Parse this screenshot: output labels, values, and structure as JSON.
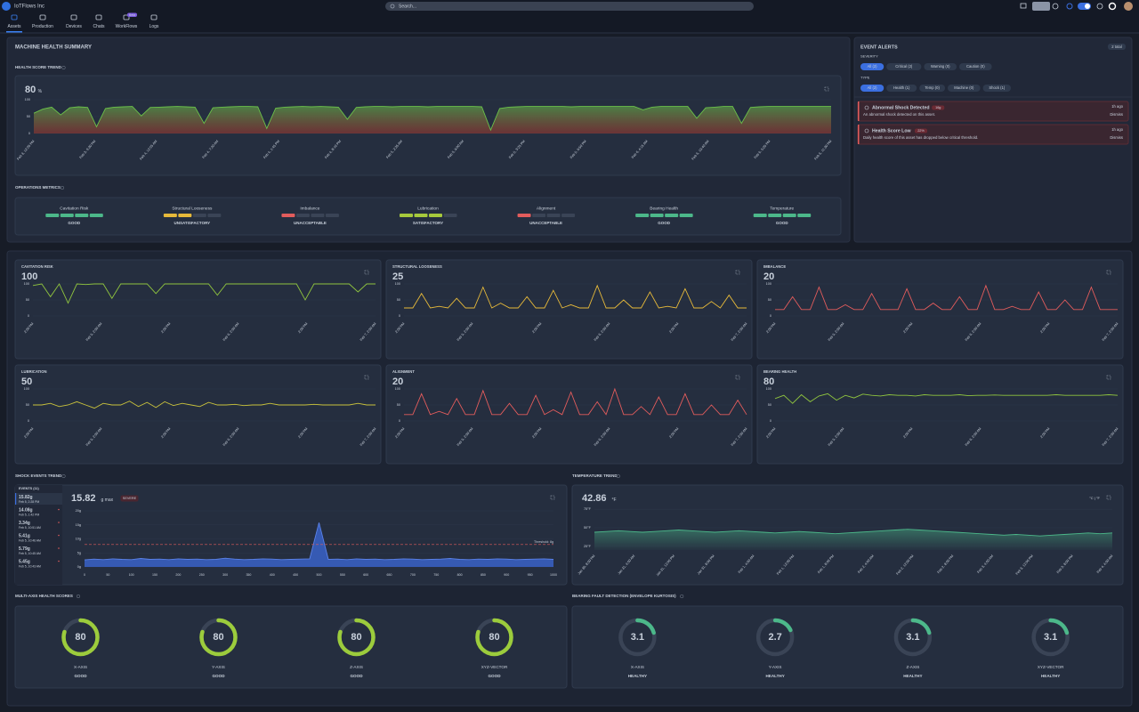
{
  "topbar": {
    "org": "IoTFlows Inc",
    "search": "Search...",
    "tabs": [
      "Assets",
      "Production",
      "Devices",
      "Chats",
      "WorkFlows",
      "Logs"
    ],
    "beta": "Beta"
  },
  "summary": {
    "title": "MACHINE HEALTH SUMMARY",
    "metrics_title": "OPERATIONS METRICS",
    "metrics": [
      {
        "name": "Cavitation Risk",
        "status": "GOOD",
        "level": 4,
        "color": "#4cb88a"
      },
      {
        "name": "Structural Looseness",
        "status": "UNSATISFACTORY",
        "level": 2,
        "color": "#e6b93a"
      },
      {
        "name": "Imbalance",
        "status": "UNACCEPTABLE",
        "level": 1,
        "color": "#e25c5c"
      },
      {
        "name": "Lubrication",
        "status": "SATISFACTORY",
        "level": 3,
        "color": "#a6c93c"
      },
      {
        "name": "Alignment",
        "status": "UNACCEPTABLE",
        "level": 1,
        "color": "#e25c5c"
      },
      {
        "name": "Bearing Health",
        "status": "GOOD",
        "level": 4,
        "color": "#4cb88a"
      },
      {
        "name": "Temperature",
        "status": "GOOD",
        "level": 4,
        "color": "#4cb88a"
      }
    ]
  },
  "alerts": {
    "title": "EVENT ALERTS",
    "total": "2 total",
    "severity_label": "SEVERITY",
    "severity": [
      "All (2)",
      "Critical (2)",
      "Warning (0)",
      "Caution (0)"
    ],
    "type_label": "TYPE",
    "types": [
      "All (2)",
      "Health (1)",
      "Temp (0)",
      "Machine (0)",
      "Shock (1)"
    ],
    "items": [
      {
        "title": "Abnormal Shock Detected",
        "badge": "16g",
        "time": "1h ago",
        "text": "An abnormal shock detected on this asset.",
        "action": "Dismiss"
      },
      {
        "title": "Health Score Low",
        "badge": "22%",
        "time": "1h ago",
        "text": "Daily health score of this asset has dropped below critical threshold.",
        "action": "Dismiss"
      }
    ]
  },
  "chart_data": [
    {
      "type": "line",
      "title": "HEALTH SCORE TREND",
      "headline": 80,
      "unit": "%",
      "color": "#6cc04a",
      "ylim": [
        0,
        100
      ],
      "yticks": [
        0,
        50,
        100
      ],
      "values": [
        60,
        72,
        78,
        55,
        76,
        79,
        77,
        20,
        74,
        78,
        79,
        80,
        52,
        77,
        78,
        79,
        80,
        79,
        78,
        30,
        76,
        78,
        79,
        80,
        80,
        79,
        15,
        75,
        78,
        79,
        80,
        79,
        80,
        79,
        78,
        42,
        77,
        79,
        80,
        80,
        79,
        80,
        80,
        80,
        79,
        80,
        80,
        80,
        80,
        80,
        79,
        10,
        74,
        78,
        79,
        80,
        80,
        80,
        80,
        80,
        79,
        80,
        80,
        80,
        80,
        80,
        80,
        80,
        70,
        78,
        80,
        80,
        80,
        80,
        45,
        76,
        78,
        80,
        80,
        30,
        77,
        79,
        80,
        80,
        80,
        80,
        80,
        80,
        80,
        80
      ],
      "x_labels": [
        "Feb 3, 12:05 PM",
        "Feb 3, 6:30 PM",
        "Feb 4, 12:55 AM",
        "Feb 4, 7:20 AM",
        "Feb 4, 1:45 PM",
        "Feb 4, 8:10 PM",
        "Feb 5, 2:35 AM",
        "Feb 5, 9:00 AM",
        "Feb 5, 3:25 PM",
        "Feb 5, 9:50 PM",
        "Feb 6, 4:15 AM",
        "Feb 6, 10:40 AM",
        "Feb 6, 5:05 PM",
        "Feb 6, 11:30 PM"
      ]
    },
    {
      "type": "line",
      "title": "CAVITATION RISK",
      "headline": 100,
      "color": "#8fc43f",
      "ylim": [
        0,
        100
      ],
      "yticks": [
        0,
        50,
        100
      ],
      "values": [
        95,
        100,
        60,
        100,
        40,
        100,
        98,
        100,
        100,
        55,
        100,
        100,
        100,
        100,
        70,
        100,
        100,
        100,
        100,
        100,
        100,
        65,
        100,
        100,
        100,
        100,
        100,
        100,
        100,
        100,
        100,
        50,
        100,
        100,
        100,
        100,
        100,
        75,
        100,
        100
      ],
      "x_labels": [
        "2:00 PM",
        "Feb 5, 2:00 AM",
        "2:00 PM",
        "Feb 6, 2:00 AM",
        "2:00 PM",
        "Feb 7, 2:00 AM"
      ]
    },
    {
      "type": "line",
      "title": "STRUCTURAL LOOSENESS",
      "headline": 25,
      "color": "#e6b93a",
      "ylim": [
        0,
        100
      ],
      "yticks": [
        0,
        50,
        100
      ],
      "values": [
        25,
        25,
        70,
        25,
        30,
        25,
        55,
        25,
        25,
        90,
        25,
        40,
        25,
        25,
        60,
        25,
        25,
        80,
        25,
        35,
        25,
        25,
        95,
        25,
        25,
        50,
        25,
        25,
        75,
        25,
        30,
        25,
        85,
        25,
        25,
        45,
        25,
        65,
        25,
        25
      ],
      "x_labels": [
        "2:00 PM",
        "Feb 5, 2:00 AM",
        "2:00 PM",
        "Feb 6, 2:00 AM",
        "2:00 PM",
        "Feb 7, 2:00 AM"
      ]
    },
    {
      "type": "line",
      "title": "IMBALANCE",
      "headline": 20,
      "color": "#e25c5c",
      "ylim": [
        0,
        100
      ],
      "yticks": [
        0,
        50,
        100
      ],
      "values": [
        20,
        20,
        60,
        20,
        20,
        90,
        20,
        20,
        35,
        20,
        20,
        70,
        20,
        20,
        20,
        85,
        20,
        20,
        40,
        20,
        20,
        60,
        20,
        20,
        95,
        20,
        20,
        30,
        20,
        20,
        75,
        20,
        20,
        50,
        20,
        20,
        90,
        20,
        20,
        20
      ],
      "x_labels": [
        "2:00 PM",
        "Feb 5, 2:00 AM",
        "2:00 PM",
        "Feb 6, 2:00 AM",
        "2:00 PM",
        "Feb 7, 2:00 AM"
      ]
    },
    {
      "type": "line",
      "title": "LUBRICATION",
      "headline": 50,
      "color": "#c9c23c",
      "ylim": [
        0,
        100
      ],
      "yticks": [
        0,
        50,
        100
      ],
      "values": [
        50,
        50,
        55,
        45,
        50,
        60,
        50,
        40,
        55,
        50,
        50,
        62,
        45,
        58,
        42,
        60,
        48,
        55,
        50,
        45,
        58,
        50,
        50,
        52,
        48,
        50,
        50,
        55,
        50,
        50,
        50,
        50,
        52,
        50,
        50,
        50,
        50,
        55,
        50,
        50
      ],
      "x_labels": [
        "2:00 PM",
        "Feb 5, 2:00 AM",
        "2:00 PM",
        "Feb 6, 2:00 AM",
        "2:00 PM",
        "Feb 7, 2:00 AM"
      ]
    },
    {
      "type": "line",
      "title": "ALIGNMENT",
      "headline": 20,
      "color": "#e25c5c",
      "ylim": [
        0,
        100
      ],
      "yticks": [
        0,
        50,
        100
      ],
      "values": [
        20,
        20,
        85,
        20,
        30,
        20,
        70,
        20,
        20,
        95,
        20,
        20,
        55,
        20,
        20,
        80,
        20,
        35,
        20,
        90,
        20,
        20,
        60,
        20,
        100,
        20,
        20,
        45,
        20,
        75,
        20,
        20,
        85,
        20,
        20,
        50,
        20,
        20,
        65,
        20
      ],
      "x_labels": [
        "2:00 PM",
        "Feb 5, 2:00 AM",
        "2:00 PM",
        "Feb 6, 2:00 AM",
        "2:00 PM",
        "Feb 7, 2:00 AM"
      ]
    },
    {
      "type": "line",
      "title": "BEARING HEALTH",
      "headline": 80,
      "color": "#8fc43f",
      "ylim": [
        0,
        100
      ],
      "yticks": [
        0,
        50,
        100
      ],
      "values": [
        70,
        80,
        55,
        82,
        60,
        78,
        85,
        65,
        80,
        72,
        84,
        80,
        78,
        82,
        80,
        80,
        78,
        82,
        80,
        80,
        80,
        82,
        79,
        80,
        80,
        81,
        80,
        80,
        80,
        80,
        80,
        80,
        82,
        80,
        80,
        80,
        80,
        80,
        82,
        80
      ],
      "x_labels": [
        "2:00 PM",
        "Feb 5, 2:00 AM",
        "2:00 PM",
        "Feb 6, 2:00 AM",
        "2:00 PM",
        "Feb 7, 2:00 AM"
      ]
    },
    {
      "type": "area",
      "title": "SHOCK EVENTS TREND",
      "events_title": "EVENTS (11)",
      "events": [
        {
          "label": "15.82g",
          "time": "Feb 5, 2:28 PM"
        },
        {
          "label": "14.08g",
          "time": "Feb 5, 1:42 PM"
        },
        {
          "label": "3.34g",
          "time": "Feb 5, 10:51 AM"
        },
        {
          "label": "5.41g",
          "time": "Feb 5, 10:46 AM"
        },
        {
          "label": "5.79g",
          "time": "Feb 5, 10:45 AM"
        },
        {
          "label": "5.45g",
          "time": "Feb 5, 10:43 AM"
        }
      ],
      "headline": 15.82,
      "unit": "g max",
      "badge": "SEVERE",
      "color": "#3a62c8",
      "x": [
        0,
        20,
        40,
        60,
        80,
        100,
        120,
        140,
        160,
        180,
        200,
        220,
        240,
        260,
        280,
        300,
        320,
        340,
        360,
        380,
        400,
        420,
        440,
        460,
        480,
        500,
        520,
        540,
        560,
        580,
        600,
        620,
        640,
        660,
        680,
        700,
        720,
        740,
        760,
        780,
        800,
        820,
        840,
        860,
        880,
        900,
        920,
        940,
        960,
        980,
        1000
      ],
      "values": [
        2.5,
        2.8,
        2.6,
        2.9,
        2.7,
        2.6,
        3.0,
        2.7,
        2.8,
        2.6,
        2.9,
        2.7,
        2.8,
        2.6,
        2.7,
        3.1,
        2.8,
        2.6,
        2.7,
        2.9,
        2.8,
        2.6,
        2.7,
        2.8,
        2.9,
        15.82,
        2.7,
        2.8,
        2.6,
        2.9,
        2.7,
        2.8,
        2.6,
        2.7,
        2.9,
        2.8,
        2.6,
        2.7,
        2.8,
        3.0,
        2.7,
        2.6,
        2.8,
        2.7,
        2.9,
        2.8,
        2.6,
        2.7,
        2.8,
        2.9,
        2.7
      ],
      "xlim": [
        0,
        1000
      ],
      "xticks": [
        0,
        50,
        100,
        150,
        200,
        250,
        300,
        350,
        400,
        450,
        500,
        550,
        600,
        650,
        700,
        750,
        800,
        850,
        900,
        950,
        1000
      ],
      "ylim": [
        0,
        20
      ],
      "yticks": [
        {
          "value": 0,
          "label": "0g"
        },
        {
          "value": 5,
          "label": "5g"
        },
        {
          "value": 10,
          "label": "10g"
        },
        {
          "value": 15,
          "label": "15g"
        },
        {
          "value": 20,
          "label": "20g"
        }
      ],
      "threshold": {
        "value": 8,
        "label": "Threshold: 8g"
      }
    },
    {
      "type": "area",
      "title": "TEMPERATURE TREND",
      "headline": 42.86,
      "unit": "°F",
      "toggle": "°C | °F",
      "color": "#4cb88a",
      "values": [
        44,
        45,
        46,
        45,
        44,
        45,
        46,
        47,
        46,
        45,
        44,
        45,
        46,
        45,
        44,
        43,
        44,
        45,
        44,
        43,
        42,
        43,
        44,
        45,
        46,
        47,
        48,
        47,
        46,
        45,
        44,
        43,
        42,
        41,
        40,
        41,
        40,
        39,
        40,
        41,
        42,
        43,
        42,
        43
      ],
      "ylim": [
        20,
        80
      ],
      "yticks": [
        {
          "value": 25,
          "label": "25°F"
        },
        {
          "value": 50,
          "label": "50°F"
        },
        {
          "value": 75,
          "label": "75°F"
        }
      ],
      "x_labels": [
        "Jan 30, 8:00 PM",
        "Jan 31, 4:00 AM",
        "Jan 31, 12:00 PM",
        "Jan 31, 8:00 PM",
        "Feb 1, 4:00 AM",
        "Feb 1, 12:00 PM",
        "Feb 1, 8:00 PM",
        "Feb 2, 4:00 AM",
        "Feb 2, 12:00 PM",
        "Feb 2, 8:00 PM",
        "Feb 3, 4:00 AM",
        "Feb 3, 12:00 PM",
        "Feb 3, 8:00 PM",
        "Feb 4, 4:00 AM"
      ]
    },
    {
      "type": "gauge",
      "title": "MULTI-AXIS HEALTH SCORES",
      "categories": [
        "X-AXIS",
        "Y-AXIS",
        "Z-AXIS",
        "XYZ-VECTOR"
      ],
      "values": [
        80,
        80,
        80,
        80
      ],
      "status": [
        "GOOD",
        "GOOD",
        "GOOD",
        "GOOD"
      ],
      "lim": [
        0,
        100
      ],
      "color": "#9ccc3c"
    },
    {
      "type": "gauge",
      "title": "BEARING FAULT DETECTION (ENVELOPE KURTOSIS)",
      "categories": [
        "X-AXIS",
        "Y-AXIS",
        "Z-AXIS",
        "XYZ-VECTOR"
      ],
      "values": [
        3.1,
        2.7,
        3.1,
        3.1
      ],
      "status": [
        "HEALTHY",
        "HEALTHY",
        "HEALTHY",
        "HEALTHY"
      ],
      "lim": [
        0,
        15
      ],
      "color": "#4cb88a"
    }
  ]
}
